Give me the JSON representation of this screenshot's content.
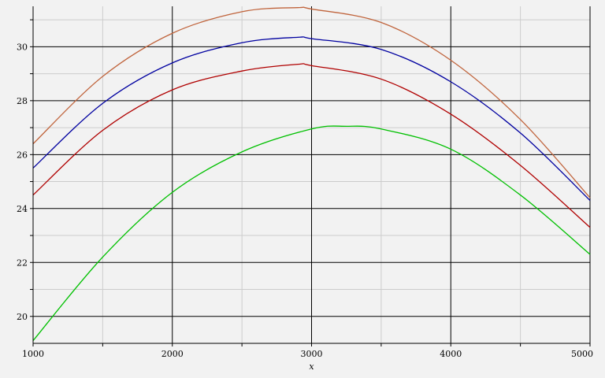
{
  "chart_data": {
    "type": "line",
    "title": "",
    "xlabel": "x",
    "ylabel": "",
    "xlim": [
      1000,
      5000
    ],
    "ylim": [
      19,
      31.5
    ],
    "grid": true,
    "legend": "none",
    "x_ticks": [
      1000,
      2000,
      3000,
      4000,
      5000
    ],
    "x_minor_ticks": [
      1500,
      2500,
      3500,
      4500
    ],
    "y_ticks": [
      20,
      22,
      24,
      26,
      28,
      30
    ],
    "y_minor_ticks": [
      21,
      23,
      25,
      27,
      29,
      31
    ],
    "x_tick_labels": [
      "1000",
      "2000",
      "3000",
      "4000",
      "5000"
    ],
    "y_tick_labels": [
      "20",
      "22",
      "24",
      "26",
      "28",
      "30"
    ],
    "series": [
      {
        "color": "#c0643c",
        "x": [
          1000,
          1500,
          2000,
          2500,
          2900,
          3000,
          3500,
          4000,
          4500,
          5000
        ],
        "values": [
          26.4,
          28.9,
          30.5,
          31.3,
          31.45,
          31.4,
          30.9,
          29.5,
          27.3,
          24.4
        ]
      },
      {
        "color": "#0000a0",
        "x": [
          1000,
          1500,
          2000,
          2500,
          2900,
          3000,
          3500,
          4000,
          4500,
          5000
        ],
        "values": [
          25.5,
          27.9,
          29.4,
          30.15,
          30.35,
          30.3,
          29.9,
          28.7,
          26.8,
          24.3
        ]
      },
      {
        "color": "#b00000",
        "x": [
          1000,
          1500,
          2000,
          2500,
          2900,
          3000,
          3500,
          4000,
          4500,
          5000
        ],
        "values": [
          24.5,
          26.9,
          28.4,
          29.1,
          29.35,
          29.3,
          28.8,
          27.5,
          25.6,
          23.3
        ]
      },
      {
        "color": "#00c000",
        "x": [
          1000,
          1500,
          2000,
          2500,
          3000,
          3250,
          3500,
          4000,
          4500,
          5000
        ],
        "values": [
          19.1,
          22.2,
          24.6,
          26.1,
          26.95,
          27.05,
          26.95,
          26.2,
          24.5,
          22.3
        ]
      }
    ]
  }
}
